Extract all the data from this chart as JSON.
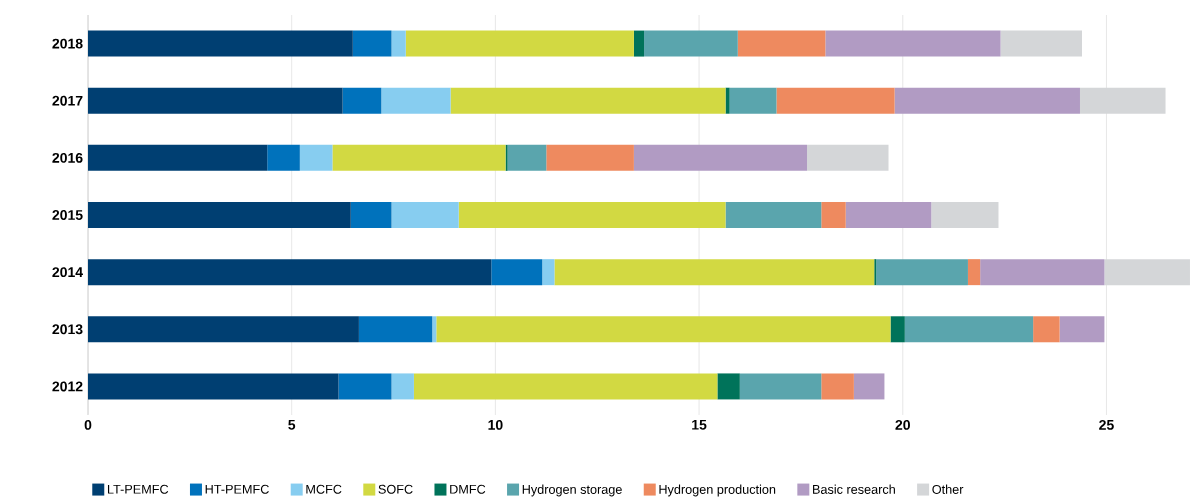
{
  "chart_data": {
    "type": "bar",
    "orientation": "horizontal",
    "stacked": true,
    "categories": [
      "2018",
      "2017",
      "2016",
      "2015",
      "2014",
      "2013",
      "2012"
    ],
    "series": [
      {
        "name": "LT-PEMFC",
        "color": "#003f72",
        "values": [
          6.5,
          6.25,
          4.4,
          6.45,
          9.9,
          6.65,
          6.15
        ]
      },
      {
        "name": "HT-PEMFC",
        "color": "#0072bc",
        "values": [
          0.95,
          0.95,
          0.8,
          1.0,
          1.25,
          1.8,
          1.3
        ]
      },
      {
        "name": "MCFC",
        "color": "#87cdf0",
        "values": [
          0.35,
          1.7,
          0.8,
          1.65,
          0.3,
          0.1,
          0.55
        ]
      },
      {
        "name": "SOFC",
        "color": "#d2d942",
        "values": [
          5.6,
          6.75,
          4.25,
          6.55,
          7.85,
          11.15,
          7.45
        ]
      },
      {
        "name": "DMFC",
        "color": "#00735a",
        "values": [
          0.25,
          0.1,
          0.05,
          0,
          0.05,
          0.35,
          0.55
        ]
      },
      {
        "name": "Hydrogen storage",
        "color": "#5aa5ad",
        "values": [
          2.3,
          1.15,
          0.95,
          2.35,
          2.25,
          3.15,
          2.0
        ]
      },
      {
        "name": "Hydrogen production",
        "color": "#ee8a5f",
        "values": [
          2.15,
          2.9,
          2.15,
          0.6,
          0.3,
          0.65,
          0.8
        ]
      },
      {
        "name": "Basic research",
        "color": "#b19bc3",
        "values": [
          4.3,
          4.55,
          4.25,
          2.1,
          3.05,
          1.1,
          0.75
        ]
      },
      {
        "name": "Other",
        "color": "#d4d6d8",
        "values": [
          2.0,
          2.1,
          2.0,
          1.65,
          2.1,
          0,
          0
        ]
      }
    ],
    "xlim": [
      0,
      27.1
    ],
    "xticks": [
      0,
      5,
      10,
      15,
      20,
      25
    ],
    "grid": "x",
    "legend": "bottom"
  }
}
